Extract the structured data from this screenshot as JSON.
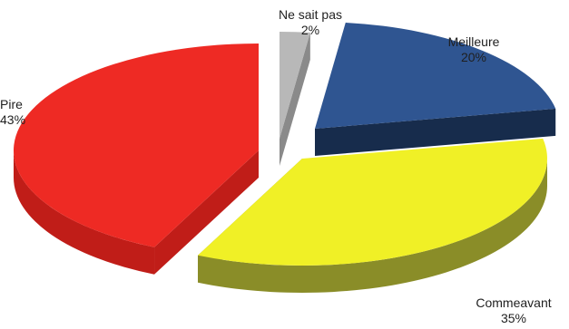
{
  "chart_data": {
    "type": "pie",
    "title": "",
    "slices": [
      {
        "name": "Ne sait pas",
        "value": 2,
        "label": "2%",
        "color": "#b8b8b8",
        "side_color": "#8a8a8a"
      },
      {
        "name": "Meilleure",
        "value": 20,
        "label": "20%",
        "color": "#2f5591",
        "side_color": "#172c4c"
      },
      {
        "name": "Comme avant",
        "value": 35,
        "label": "35%",
        "color": "#f0f026",
        "side_color": "#8a8d28"
      },
      {
        "name": "Pire",
        "value": 43,
        "label": "43%",
        "color": "#ee2a24",
        "side_color": "#c01d18"
      }
    ],
    "exploded": true,
    "style": "3d"
  },
  "labels": {
    "nsp_name": "Ne sait pas",
    "nsp_value": "2%",
    "meilleure_name": "Meilleure",
    "meilleure_value": "20%",
    "pire_name": "Pire",
    "pire_value": "43%",
    "comme_avant_name": "Commeavant",
    "comme_avant_value": "35%"
  }
}
